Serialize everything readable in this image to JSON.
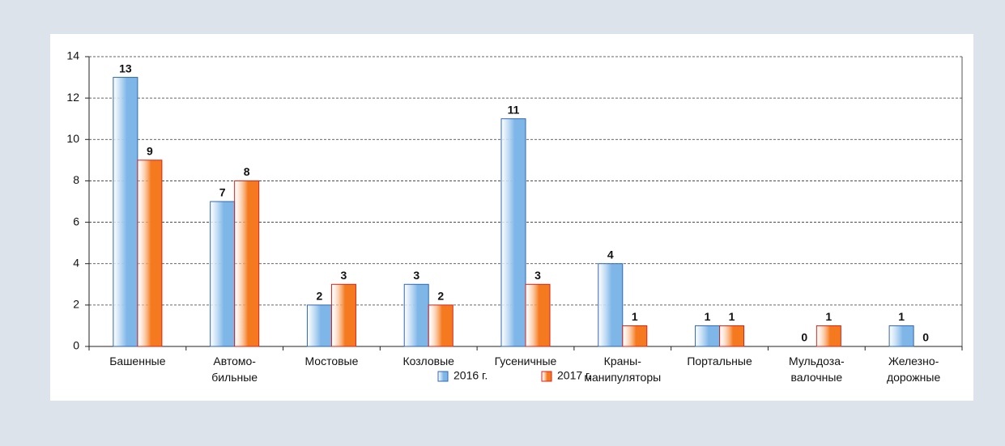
{
  "chart_data": {
    "type": "bar",
    "categories": [
      "Башенные",
      "Автомо-\nбильные",
      "Мостовые",
      "Козловые",
      "Гусеничные",
      "Краны-\nманипуляторы",
      "Портальные",
      "Мульдоза-\nвалочные",
      "Железно-\nдорожные"
    ],
    "series": [
      {
        "name": "2016 г.",
        "color": "#7fb6e8",
        "border": "#2f67b1",
        "values": [
          13,
          7,
          2,
          3,
          11,
          4,
          1,
          0,
          1
        ]
      },
      {
        "name": "2017 г.",
        "color": "#f57a1f",
        "border": "#d8231b",
        "values": [
          9,
          8,
          3,
          2,
          3,
          1,
          1,
          1,
          0
        ]
      }
    ],
    "ylim": [
      0,
      14
    ],
    "yticks": [
      0,
      2,
      4,
      6,
      8,
      10,
      12,
      14
    ],
    "grid": true,
    "legend": "bottom"
  }
}
